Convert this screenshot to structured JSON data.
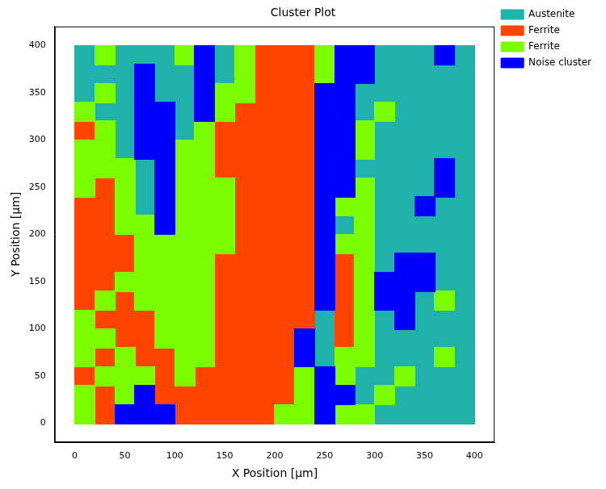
{
  "chart_data": {
    "type": "heatmap",
    "title": "Cluster Plot",
    "x_label": "X Position [µm]",
    "y_label": "Y Position [µm]",
    "series": [
      {
        "name": "Austenite",
        "color": "#20b2aa"
      },
      {
        "name": "Ferrite",
        "color": "#ff4500"
      },
      {
        "name": "Ferrite",
        "color": "#7cfc00"
      },
      {
        "name": "Noise cluster",
        "color": "#0000ff"
      }
    ],
    "x": [
      10,
      30,
      50,
      70,
      90,
      110,
      130,
      150,
      170,
      190,
      210,
      230,
      250,
      270,
      290,
      310,
      330,
      350,
      370,
      390
    ],
    "y": [
      390,
      370,
      350,
      330,
      310,
      290,
      270,
      250,
      230,
      210,
      190,
      170,
      150,
      130,
      110,
      90,
      70,
      50,
      30,
      10
    ],
    "cells": [
      [
        0,
        2,
        0,
        0,
        0,
        2,
        3,
        0,
        2,
        1,
        1,
        1,
        2,
        3,
        3,
        0,
        0,
        0,
        3,
        0
      ],
      [
        0,
        0,
        0,
        3,
        0,
        0,
        3,
        0,
        2,
        1,
        1,
        1,
        2,
        3,
        3,
        0,
        0,
        0,
        0,
        0
      ],
      [
        0,
        2,
        0,
        3,
        0,
        0,
        3,
        2,
        2,
        1,
        1,
        1,
        3,
        3,
        0,
        0,
        0,
        0,
        0,
        0
      ],
      [
        2,
        0,
        0,
        3,
        3,
        0,
        3,
        2,
        1,
        1,
        1,
        1,
        3,
        3,
        0,
        2,
        0,
        0,
        0,
        0
      ],
      [
        1,
        2,
        0,
        3,
        3,
        0,
        2,
        1,
        1,
        1,
        1,
        1,
        3,
        3,
        2,
        0,
        0,
        0,
        0,
        0
      ],
      [
        2,
        2,
        0,
        3,
        3,
        2,
        2,
        1,
        1,
        1,
        1,
        1,
        3,
        3,
        2,
        0,
        0,
        0,
        0,
        0
      ],
      [
        2,
        2,
        2,
        0,
        3,
        2,
        2,
        1,
        1,
        1,
        1,
        1,
        3,
        3,
        0,
        0,
        0,
        0,
        3,
        0
      ],
      [
        2,
        1,
        2,
        0,
        3,
        2,
        2,
        2,
        1,
        1,
        1,
        1,
        3,
        3,
        2,
        0,
        0,
        0,
        3,
        0
      ],
      [
        1,
        1,
        2,
        0,
        3,
        2,
        2,
        2,
        1,
        1,
        1,
        1,
        3,
        2,
        2,
        0,
        0,
        3,
        0,
        0
      ],
      [
        1,
        1,
        2,
        2,
        3,
        2,
        2,
        2,
        1,
        1,
        1,
        1,
        3,
        0,
        2,
        0,
        0,
        0,
        0,
        0
      ],
      [
        1,
        1,
        1,
        2,
        2,
        2,
        2,
        2,
        1,
        1,
        1,
        1,
        3,
        2,
        2,
        0,
        0,
        0,
        0,
        0
      ],
      [
        1,
        1,
        1,
        2,
        2,
        2,
        2,
        1,
        1,
        1,
        1,
        1,
        3,
        1,
        2,
        0,
        3,
        3,
        0,
        0
      ],
      [
        1,
        1,
        2,
        2,
        2,
        2,
        2,
        1,
        1,
        1,
        1,
        1,
        3,
        1,
        2,
        3,
        3,
        3,
        0,
        0
      ],
      [
        1,
        2,
        1,
        2,
        2,
        2,
        2,
        1,
        1,
        1,
        1,
        1,
        3,
        1,
        2,
        3,
        3,
        0,
        2,
        0
      ],
      [
        2,
        1,
        1,
        1,
        2,
        2,
        2,
        1,
        1,
        1,
        1,
        1,
        0,
        1,
        2,
        0,
        3,
        0,
        0,
        0
      ],
      [
        2,
        2,
        1,
        1,
        2,
        2,
        2,
        1,
        1,
        1,
        1,
        3,
        0,
        1,
        2,
        0,
        0,
        0,
        0,
        0
      ],
      [
        2,
        1,
        2,
        1,
        1,
        2,
        2,
        1,
        1,
        1,
        1,
        3,
        0,
        2,
        2,
        0,
        0,
        0,
        2,
        0
      ],
      [
        1,
        2,
        2,
        2,
        1,
        2,
        1,
        1,
        1,
        1,
        1,
        2,
        3,
        2,
        0,
        0,
        2,
        0,
        0,
        0
      ],
      [
        2,
        1,
        2,
        3,
        1,
        1,
        1,
        1,
        1,
        1,
        1,
        2,
        3,
        3,
        0,
        2,
        0,
        0,
        0,
        0
      ],
      [
        2,
        1,
        3,
        3,
        3,
        1,
        1,
        1,
        1,
        1,
        2,
        2,
        3,
        2,
        2,
        0,
        0,
        0,
        0,
        0
      ]
    ],
    "xlim": [
      -20,
      420
    ],
    "ylim": [
      -20,
      420
    ],
    "xticks": [
      0,
      50,
      100,
      150,
      200,
      250,
      300,
      350,
      400
    ],
    "yticks": [
      0,
      50,
      100,
      150,
      200,
      250,
      300,
      350,
      400
    ],
    "grid": false,
    "legend": "right"
  }
}
